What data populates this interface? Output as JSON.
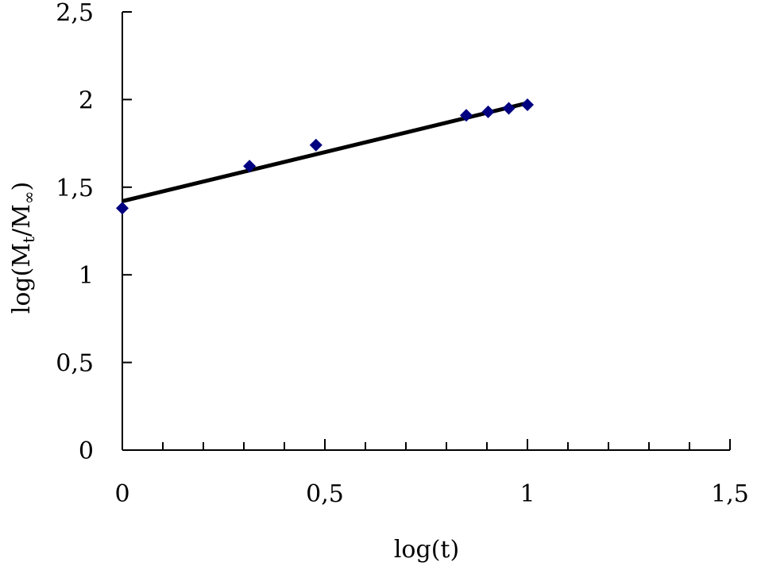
{
  "chart_data": {
    "type": "scatter",
    "title": "",
    "xlabel": "log(t)",
    "ylabel": "log(Mt/M∞)",
    "ylabel_parts": {
      "pre": "log(M",
      "sub1": "t",
      "mid": "/M",
      "sub2": "∞",
      "post": ")"
    },
    "xlim": [
      0,
      1.5
    ],
    "ylim": [
      0,
      2.5
    ],
    "x_ticks": [
      0,
      0.5,
      1,
      1.5
    ],
    "x_tick_labels": [
      "0",
      "0,5",
      "1",
      "1,5"
    ],
    "x_minor_step": 0.1,
    "y_ticks": [
      0,
      0.5,
      1,
      1.5,
      2,
      2.5
    ],
    "y_tick_labels": [
      "0",
      "0,5",
      "1",
      "1,5",
      "2",
      "2,5"
    ],
    "grid": false,
    "legend": "none",
    "series": [
      {
        "name": "measured",
        "marker": "diamond",
        "color": "#000080",
        "x": [
          0.0,
          0.314,
          0.478,
          0.849,
          0.903,
          0.954,
          1.0
        ],
        "y": [
          1.38,
          1.62,
          1.74,
          1.91,
          1.93,
          1.95,
          1.97
        ]
      },
      {
        "name": "linear fit",
        "type": "line",
        "color": "#000000",
        "x": [
          0.0,
          1.0
        ],
        "y": [
          1.42,
          1.98
        ]
      }
    ]
  }
}
